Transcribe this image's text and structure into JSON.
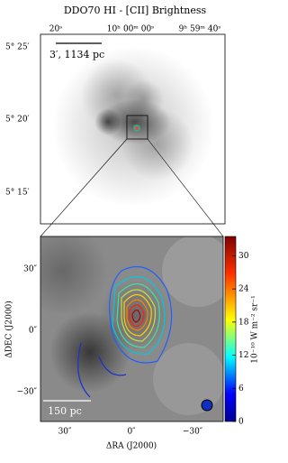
{
  "title": "DDO70 HI - [CII] Brightness",
  "top_panel": {
    "x_tick_labels": [
      "20ˢ",
      "10ʰ 00ᵐ 00ˢ",
      "9ʰ 59ᵐ 40ˢ"
    ],
    "y_tick_labels": [
      "5° 25′",
      "5° 20′",
      "5° 15′"
    ],
    "scale_bar": "3′, 1134 pc"
  },
  "bottom_panel": {
    "x_tick_labels": [
      "30″",
      "0″",
      "−30″"
    ],
    "y_tick_labels": [
      "30″",
      "0″",
      "−30″"
    ],
    "x_label": "ΔRA (J2000)",
    "y_label": "ΔDEC (J2000)",
    "scale_bar": "150 pc"
  },
  "colorbar": {
    "label": "10⁻¹⁰ W m⁻² sr⁻¹",
    "lim": [
      0,
      33.5
    ],
    "ticks": [
      0,
      6,
      12,
      18,
      24,
      30
    ]
  }
}
